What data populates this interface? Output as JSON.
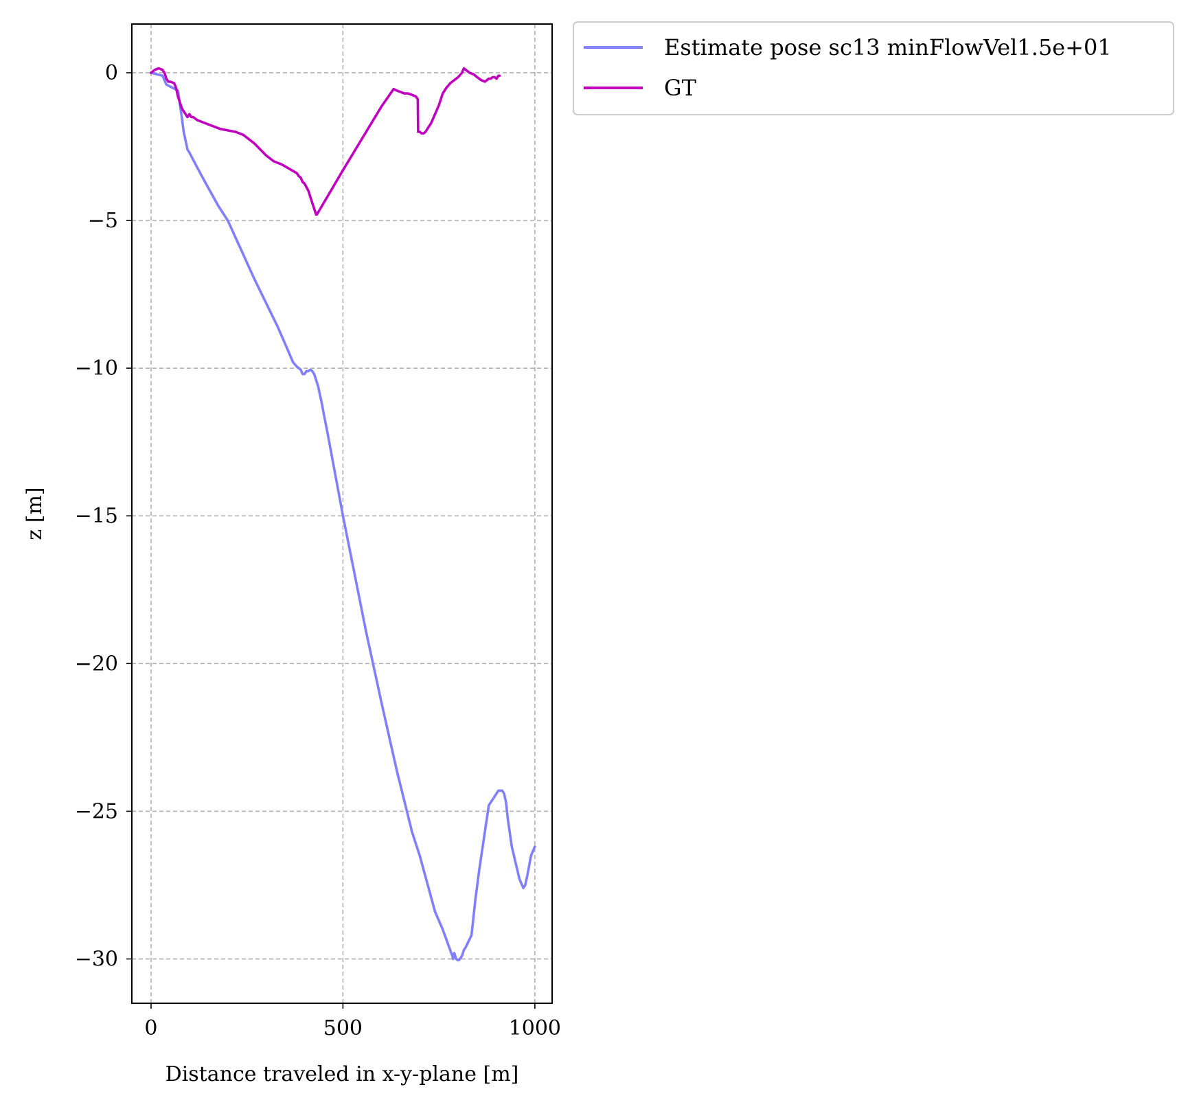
{
  "chart_data": {
    "type": "line",
    "xlabel": "Distance traveled in x-y-plane [m]",
    "ylabel": "z [m]",
    "xlim": [
      -50,
      1045
    ],
    "ylim": [
      -31.5,
      1.65
    ],
    "xticks": [
      0,
      500,
      1000
    ],
    "yticks": [
      0,
      -5,
      -10,
      -15,
      -20,
      -25,
      -30
    ],
    "xtick_labels": [
      "0",
      "500",
      "1000"
    ],
    "ytick_labels": [
      "0",
      "−5",
      "−10",
      "−15",
      "−20",
      "−25",
      "−30"
    ],
    "grid": true,
    "legend_position": "outside-top-right",
    "series": [
      {
        "name": "Estimate pose sc13 minFlowVel1.5e+01",
        "color": "#8080ff",
        "x": [
          0,
          30,
          40,
          70,
          80,
          85,
          95,
          100,
          120,
          145,
          175,
          200,
          235,
          270,
          300,
          330,
          350,
          360,
          365,
          370,
          380,
          390,
          395,
          400,
          405,
          410,
          415,
          420,
          425,
          430,
          435,
          440,
          445,
          450,
          460,
          470,
          480,
          490,
          500,
          520,
          560,
          600,
          640,
          680,
          700,
          740,
          760,
          785,
          787,
          790,
          795,
          800,
          805,
          810,
          815,
          820,
          835,
          845,
          855,
          880,
          905,
          915,
          920,
          925,
          930,
          940,
          960,
          970,
          975,
          980,
          990,
          1000
        ],
        "y": [
          0,
          -0.1,
          -0.4,
          -0.6,
          -1.5,
          -2.0,
          -2.6,
          -2.7,
          -3.2,
          -3.8,
          -4.5,
          -5.0,
          -6.0,
          -7.0,
          -7.8,
          -8.6,
          -9.2,
          -9.5,
          -9.65,
          -9.8,
          -9.95,
          -10.05,
          -10.2,
          -10.2,
          -10.1,
          -10.1,
          -10.05,
          -10.1,
          -10.2,
          -10.4,
          -10.6,
          -10.9,
          -11.2,
          -11.55,
          -12.2,
          -12.9,
          -13.6,
          -14.3,
          -15.0,
          -16.3,
          -18.9,
          -21.3,
          -23.6,
          -25.7,
          -26.5,
          -28.4,
          -29.0,
          -29.9,
          -30.0,
          -29.8,
          -30.0,
          -30.05,
          -30.0,
          -29.9,
          -29.7,
          -29.6,
          -29.2,
          -28.0,
          -27.0,
          -24.8,
          -24.3,
          -24.3,
          -24.4,
          -24.7,
          -25.3,
          -26.2,
          -27.3,
          -27.6,
          -27.5,
          -27.2,
          -26.5,
          -26.2
        ]
      },
      {
        "name": "GT",
        "color": "#bf00bf",
        "x": [
          0,
          10,
          20,
          30,
          32,
          35,
          40,
          45,
          50,
          60,
          65,
          70,
          80,
          90,
          95,
          100,
          105,
          110,
          120,
          150,
          180,
          200,
          220,
          240,
          250,
          270,
          300,
          320,
          340,
          360,
          380,
          385,
          390,
          395,
          400,
          410,
          420,
          430,
          432,
          500,
          600,
          632,
          640,
          650,
          660,
          670,
          680,
          690,
          695,
          696,
          700,
          705,
          710,
          715,
          720,
          730,
          740,
          750,
          760,
          770,
          780,
          790,
          800,
          810,
          815,
          820,
          825,
          830,
          840,
          850,
          860,
          870,
          880,
          885,
          890,
          895,
          900,
          905,
          908
        ],
        "y": [
          0,
          0.1,
          0.15,
          0.1,
          0.05,
          0.0,
          -0.2,
          -0.3,
          -0.3,
          -0.35,
          -0.5,
          -0.8,
          -1.2,
          -1.4,
          -1.5,
          -1.4,
          -1.5,
          -1.5,
          -1.6,
          -1.75,
          -1.9,
          -1.95,
          -2.0,
          -2.1,
          -2.2,
          -2.4,
          -2.8,
          -3.0,
          -3.1,
          -3.25,
          -3.4,
          -3.5,
          -3.55,
          -3.7,
          -3.75,
          -4.0,
          -4.4,
          -4.8,
          -4.8,
          -3.3,
          -1.15,
          -0.55,
          -0.6,
          -0.65,
          -0.7,
          -0.7,
          -0.75,
          -0.8,
          -0.9,
          -2.0,
          -2.0,
          -2.05,
          -2.05,
          -2.0,
          -1.9,
          -1.7,
          -1.4,
          -1.1,
          -0.7,
          -0.5,
          -0.35,
          -0.25,
          -0.15,
          0.0,
          0.15,
          0.1,
          0.05,
          0.0,
          -0.05,
          -0.15,
          -0.25,
          -0.3,
          -0.2,
          -0.2,
          -0.15,
          -0.15,
          -0.2,
          -0.1,
          -0.1
        ]
      }
    ]
  }
}
